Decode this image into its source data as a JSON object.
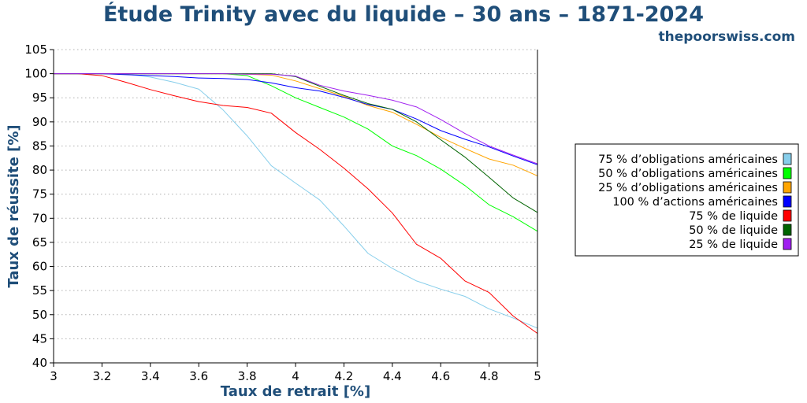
{
  "chart_data": {
    "type": "line",
    "title": "Étude Trinity avec du liquide – 30 ans – 1871-2024",
    "subtitle": "thepoorswiss.com",
    "xlabel": "Taux de retrait [%]",
    "ylabel": "Taux de réussite [%]",
    "xlim": [
      3,
      5
    ],
    "ylim": [
      40,
      105
    ],
    "xticks": [
      3,
      3.2,
      3.4,
      3.6,
      3.8,
      4,
      4.2,
      4.4,
      4.6,
      4.8,
      5
    ],
    "xtick_labels": [
      "3",
      "3.2",
      "3.4",
      "3.6",
      "3.8",
      "4",
      "4.2",
      "4.4",
      "4.6",
      "4.8",
      "5"
    ],
    "yticks": [
      40,
      45,
      50,
      55,
      60,
      65,
      70,
      75,
      80,
      85,
      90,
      95,
      100,
      105
    ],
    "ytick_labels": [
      "40",
      "45",
      "50",
      "55",
      "60",
      "65",
      "70",
      "75",
      "80",
      "85",
      "90",
      "95",
      "100",
      "105"
    ],
    "grid": "horizontal-dotted",
    "legend_position": "right",
    "x": [
      3.0,
      3.1,
      3.2,
      3.3,
      3.4,
      3.5,
      3.6,
      3.7,
      3.8,
      3.9,
      4.0,
      4.1,
      4.2,
      4.3,
      4.4,
      4.5,
      4.6,
      4.7,
      4.8,
      4.9,
      5.0
    ],
    "series": [
      {
        "name": "75 % d’obligations américaines",
        "color": "#87ceeb",
        "values": [
          100,
          100,
          100,
          99.9,
          99.3,
          98.2,
          96.8,
          92.5,
          87.1,
          80.9,
          77.3,
          73.8,
          68.4,
          62.7,
          59.6,
          57.0,
          55.3,
          53.8,
          51.2,
          49.3,
          47.2
        ]
      },
      {
        "name": "50 % d’obligations américaines",
        "color": "#00ff00",
        "values": [
          100,
          100,
          100,
          100,
          100,
          100,
          100,
          100,
          99.6,
          97.5,
          95.0,
          93.0,
          91.0,
          88.5,
          85.0,
          83.0,
          80.2,
          76.8,
          72.8,
          70.3,
          67.3
        ]
      },
      {
        "name": "25 % d’obligations américaines",
        "color": "#ffa500",
        "values": [
          100,
          100,
          100,
          100,
          100,
          100,
          100,
          100,
          99.9,
          99.7,
          98.5,
          96.9,
          95.3,
          93.4,
          92.0,
          89.5,
          86.8,
          84.5,
          82.3,
          81.0,
          78.8
        ]
      },
      {
        "name": "100 % d’actions américaines",
        "color": "#0000ff",
        "values": [
          100,
          100,
          100,
          99.8,
          99.6,
          99.4,
          99.1,
          99.0,
          98.8,
          98.1,
          97.1,
          96.4,
          95.1,
          93.6,
          92.6,
          90.6,
          88.2,
          86.4,
          84.8,
          82.9,
          81.1
        ]
      },
      {
        "name": "75 % de liquide",
        "color": "#ff0000",
        "values": [
          100,
          100,
          99.6,
          98.2,
          96.7,
          95.4,
          94.2,
          93.4,
          93.0,
          91.8,
          87.8,
          84.3,
          80.4,
          76.1,
          71.1,
          64.6,
          61.7,
          57.0,
          54.6,
          49.7,
          46.1
        ]
      },
      {
        "name": "50 % de liquide",
        "color": "#006400",
        "values": [
          100,
          100,
          100,
          100,
          100,
          100,
          100,
          100,
          100,
          100,
          99.4,
          97.4,
          95.5,
          93.8,
          92.6,
          90.0,
          86.3,
          82.7,
          78.5,
          74.2,
          71.2
        ]
      },
      {
        "name": "25 % de liquide",
        "color": "#a020f0",
        "values": [
          100,
          100,
          100,
          100,
          100,
          100,
          100,
          100,
          99.9,
          99.9,
          99.5,
          97.6,
          96.4,
          95.5,
          94.5,
          93.1,
          90.5,
          87.6,
          85.0,
          83.1,
          81.3
        ]
      }
    ]
  }
}
